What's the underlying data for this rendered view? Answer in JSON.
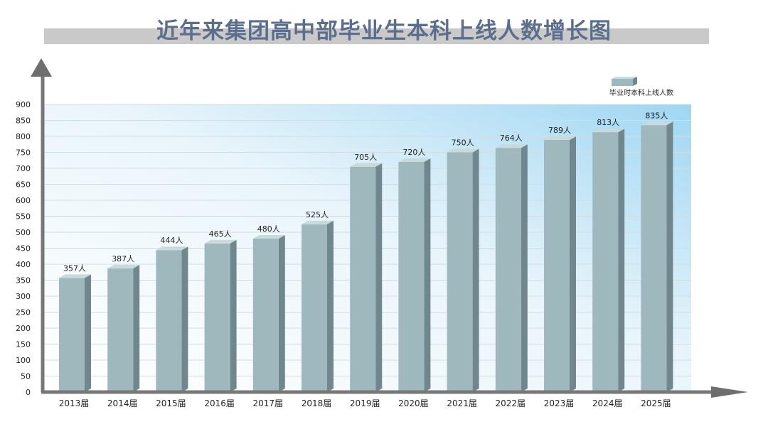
{
  "title": "近年来集团高中部毕业生本科上线人数增长图",
  "chart_data": {
    "type": "bar",
    "title": "近年来集团高中部毕业生本科上线人数增长图",
    "categories": [
      "2013届",
      "2014届",
      "2015届",
      "2016届",
      "2017届",
      "2018届",
      "2019届",
      "2020届",
      "2021届",
      "2022届",
      "2023届",
      "2024届",
      "2025届"
    ],
    "series": [
      {
        "name": "毕业时本科上线人数",
        "values": [
          357,
          387,
          444,
          465,
          480,
          525,
          705,
          720,
          750,
          764,
          789,
          813,
          835
        ],
        "labels": [
          "357人",
          "387人",
          "444人",
          "465人",
          "480人",
          "525人",
          "705人",
          "720人",
          "750人",
          "764人",
          "789人",
          "813人",
          "835人"
        ]
      }
    ],
    "ylim": [
      0,
      900
    ],
    "yticks": [
      "0",
      "50",
      "100",
      "150",
      "200",
      "250",
      "300",
      "350",
      "400",
      "450",
      "500",
      "550",
      "600",
      "650",
      "700",
      "750",
      "800",
      "850",
      "900"
    ],
    "grid": true,
    "legend_position": "top-right",
    "colors": {
      "bar_front": "#9fb8be",
      "bar_side": "#6f878d",
      "bar_top": "#c8dadc",
      "title": "#5c6e8c"
    }
  }
}
